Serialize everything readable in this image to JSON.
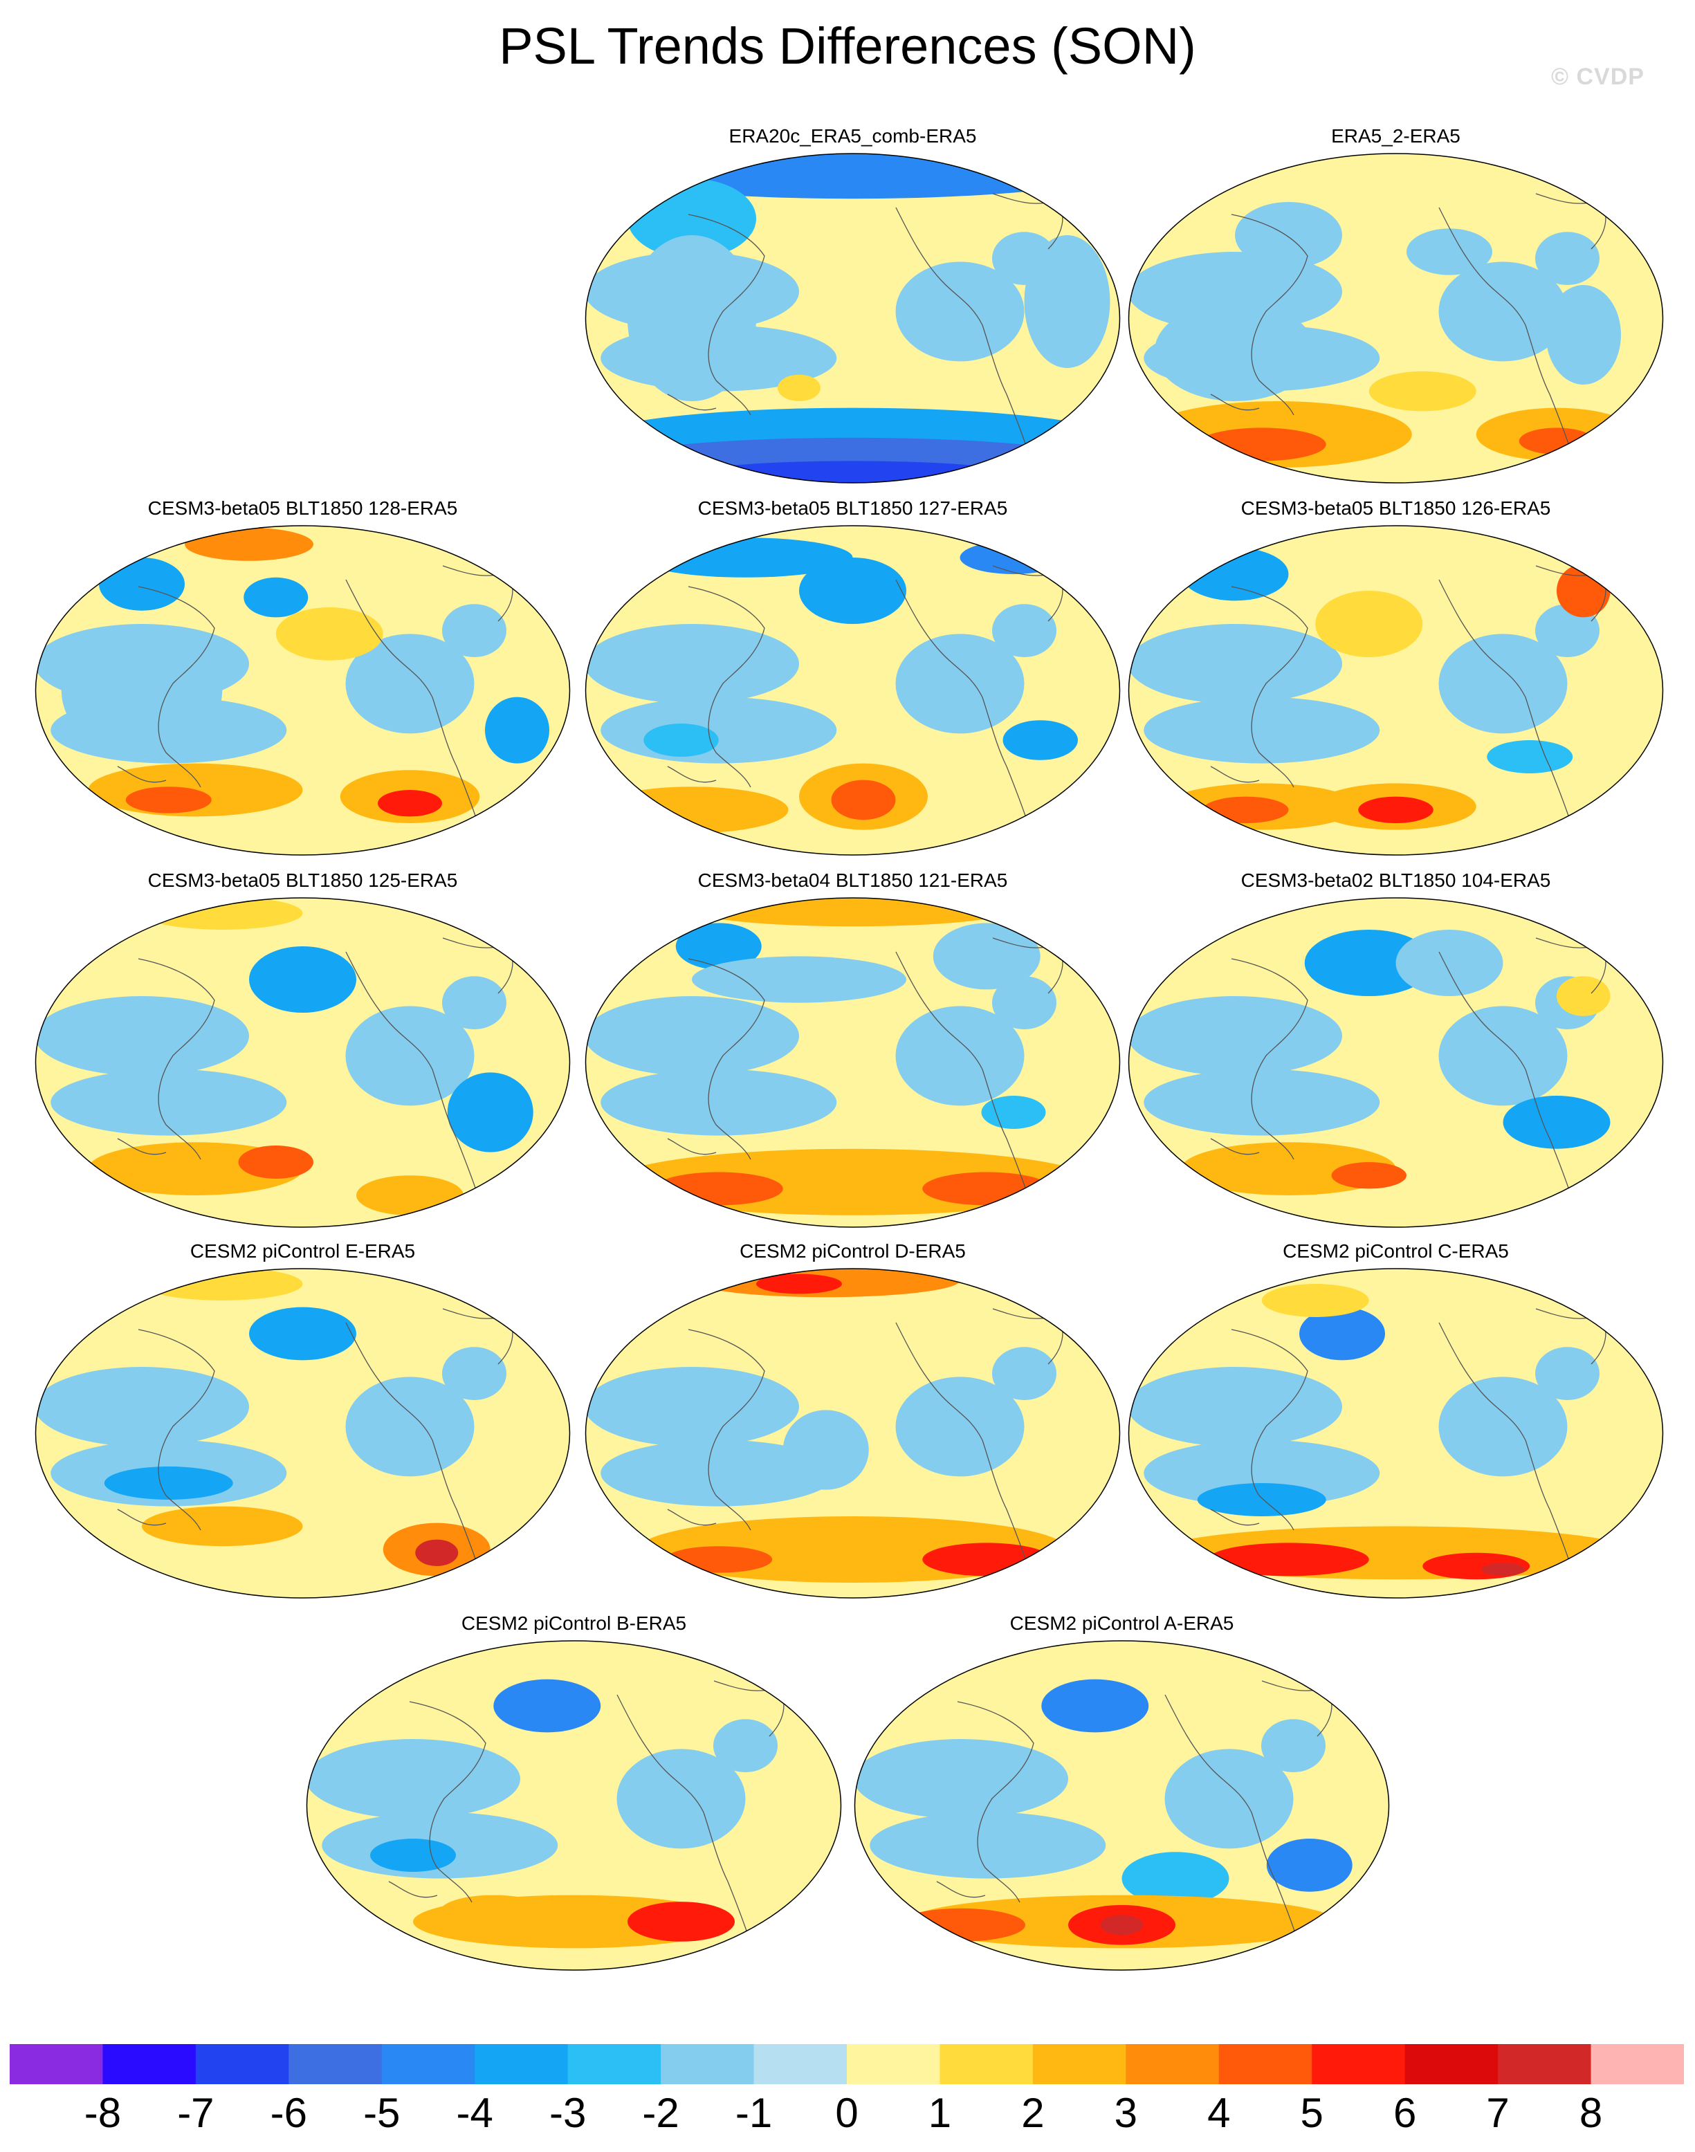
{
  "title": "PSL Trends Differences (SON)",
  "watermark": "© CVDP",
  "panels": [
    {
      "label": "ERA20c_ERA5_comb-ERA5",
      "pattern": "era20c"
    },
    {
      "label": "ERA5_2-ERA5",
      "pattern": "era5_2"
    },
    {
      "label": "CESM3-beta05 BLT1850 128-ERA5",
      "pattern": "b128"
    },
    {
      "label": "CESM3-beta05 BLT1850 127-ERA5",
      "pattern": "b127"
    },
    {
      "label": "CESM3-beta05 BLT1850 126-ERA5",
      "pattern": "b126"
    },
    {
      "label": "CESM3-beta05 BLT1850 125-ERA5",
      "pattern": "b125"
    },
    {
      "label": "CESM3-beta04 BLT1850 121-ERA5",
      "pattern": "b121"
    },
    {
      "label": "CESM3-beta02 BLT1850 104-ERA5",
      "pattern": "b104"
    },
    {
      "label": "CESM2 piControl E-ERA5",
      "pattern": "pcE"
    },
    {
      "label": "CESM2 piControl D-ERA5",
      "pattern": "pcD"
    },
    {
      "label": "CESM2 piControl C-ERA5",
      "pattern": "pcC"
    },
    {
      "label": "CESM2 piControl B-ERA5",
      "pattern": "pcB"
    },
    {
      "label": "CESM2 piControl A-ERA5",
      "pattern": "pcA"
    }
  ],
  "legend": {
    "colors": [
      "#8a2be2",
      "#2a0bff",
      "#2244f0",
      "#3d6fe2",
      "#2a88f5",
      "#14a5f5",
      "#2bbff5",
      "#85cdee",
      "#b7dff2",
      "#fff59e",
      "#ffdc3c",
      "#ffb812",
      "#ff8c0a",
      "#ff5a0a",
      "#ff1a0a",
      "#dc0a0a",
      "#d22828",
      "#ffb4b4"
    ],
    "tick_labels": [
      "-8",
      "-7",
      "-6",
      "-5",
      "-4",
      "-3",
      "-2",
      "-1",
      "0",
      "1",
      "2",
      "3",
      "4",
      "5",
      "6",
      "7",
      "8"
    ]
  }
}
